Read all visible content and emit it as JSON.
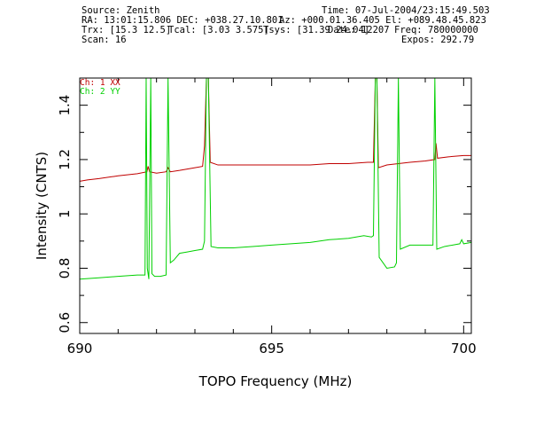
{
  "header": {
    "source": "Source: Zenith",
    "time": "Time: 07-Jul-2004/23:15:49.503",
    "ra_dec": "RA: 13:01:15.806 DEC: +038.27.10.801",
    "az_el": "Az: +000.01.36.405 El: +089.48.45.823",
    "trx": "Trx: [15.3 12.5]",
    "tcal": "Tcal: [3.03 3.575]",
    "tsys": "Tsys: [31.39 24.04]",
    "date": "Date: 12207",
    "freq": "Freq: 780000000",
    "scan": "Scan: 16",
    "expos": "Expos: 292.79"
  },
  "legend": [
    {
      "label": "Ch: 1 XX",
      "color": "#c00000"
    },
    {
      "label": "Ch: 2 YY",
      "color": "#00d000"
    }
  ],
  "chart_data": {
    "type": "line",
    "xlabel": "TOPO Frequency (MHz)",
    "ylabel": "Intensity (CNTS)",
    "xlim": [
      690,
      700.2
    ],
    "ylim": [
      0.56,
      1.5
    ],
    "xticks": [
      690,
      695,
      700
    ],
    "yticks": [
      0.6,
      0.8,
      1,
      1.2,
      1.4
    ],
    "x_minor_step": 1,
    "y_minor_step": 0.1,
    "series": [
      {
        "name": "Ch: 1 XX",
        "color": "#c00000",
        "points": [
          [
            690.0,
            1.12
          ],
          [
            690.2,
            1.125
          ],
          [
            690.5,
            1.13
          ],
          [
            691.0,
            1.14
          ],
          [
            691.5,
            1.148
          ],
          [
            691.75,
            1.155
          ],
          [
            691.78,
            1.175
          ],
          [
            691.82,
            1.155
          ],
          [
            692.0,
            1.15
          ],
          [
            692.25,
            1.155
          ],
          [
            692.3,
            1.17
          ],
          [
            692.36,
            1.155
          ],
          [
            692.6,
            1.16
          ],
          [
            693.0,
            1.17
          ],
          [
            693.2,
            1.175
          ],
          [
            693.25,
            1.25
          ],
          [
            693.3,
            1.5
          ],
          [
            693.35,
            1.5
          ],
          [
            693.4,
            1.19
          ],
          [
            693.6,
            1.18
          ],
          [
            694.0,
            1.18
          ],
          [
            694.5,
            1.18
          ],
          [
            695.0,
            1.18
          ],
          [
            695.5,
            1.18
          ],
          [
            696.0,
            1.18
          ],
          [
            696.5,
            1.185
          ],
          [
            697.0,
            1.185
          ],
          [
            697.5,
            1.19
          ],
          [
            697.65,
            1.19
          ],
          [
            697.7,
            1.5
          ],
          [
            697.74,
            1.5
          ],
          [
            697.78,
            1.17
          ],
          [
            698.0,
            1.18
          ],
          [
            698.3,
            1.185
          ],
          [
            698.6,
            1.19
          ],
          [
            699.0,
            1.195
          ],
          [
            699.25,
            1.2
          ],
          [
            699.28,
            1.26
          ],
          [
            699.32,
            1.205
          ],
          [
            699.6,
            1.21
          ],
          [
            700.0,
            1.215
          ],
          [
            700.2,
            1.215
          ]
        ]
      },
      {
        "name": "Ch: 2 YY",
        "color": "#00d000",
        "points": [
          [
            690.0,
            0.76
          ],
          [
            690.5,
            0.765
          ],
          [
            691.0,
            0.77
          ],
          [
            691.5,
            0.775
          ],
          [
            691.7,
            0.775
          ],
          [
            691.73,
            1.5
          ],
          [
            691.76,
            0.8
          ],
          [
            691.8,
            0.76
          ],
          [
            691.85,
            1.5
          ],
          [
            691.88,
            0.78
          ],
          [
            691.95,
            0.77
          ],
          [
            692.1,
            0.77
          ],
          [
            692.25,
            0.775
          ],
          [
            692.3,
            1.5
          ],
          [
            692.36,
            0.82
          ],
          [
            692.45,
            0.83
          ],
          [
            692.6,
            0.855
          ],
          [
            692.8,
            0.86
          ],
          [
            693.0,
            0.865
          ],
          [
            693.2,
            0.87
          ],
          [
            693.25,
            0.9
          ],
          [
            693.3,
            1.5
          ],
          [
            693.35,
            1.5
          ],
          [
            693.42,
            0.88
          ],
          [
            693.6,
            0.875
          ],
          [
            694.0,
            0.875
          ],
          [
            694.5,
            0.88
          ],
          [
            695.0,
            0.885
          ],
          [
            695.5,
            0.89
          ],
          [
            696.0,
            0.895
          ],
          [
            696.5,
            0.905
          ],
          [
            697.0,
            0.91
          ],
          [
            697.4,
            0.92
          ],
          [
            697.6,
            0.915
          ],
          [
            697.65,
            0.92
          ],
          [
            697.7,
            1.5
          ],
          [
            697.74,
            1.5
          ],
          [
            697.8,
            0.84
          ],
          [
            698.0,
            0.8
          ],
          [
            698.2,
            0.805
          ],
          [
            698.25,
            0.82
          ],
          [
            698.3,
            1.5
          ],
          [
            698.35,
            0.87
          ],
          [
            698.6,
            0.885
          ],
          [
            699.0,
            0.885
          ],
          [
            699.2,
            0.885
          ],
          [
            699.25,
            1.5
          ],
          [
            699.3,
            0.87
          ],
          [
            699.5,
            0.88
          ],
          [
            699.9,
            0.89
          ],
          [
            699.95,
            0.905
          ],
          [
            700.0,
            0.89
          ],
          [
            700.2,
            0.895
          ]
        ]
      }
    ]
  }
}
